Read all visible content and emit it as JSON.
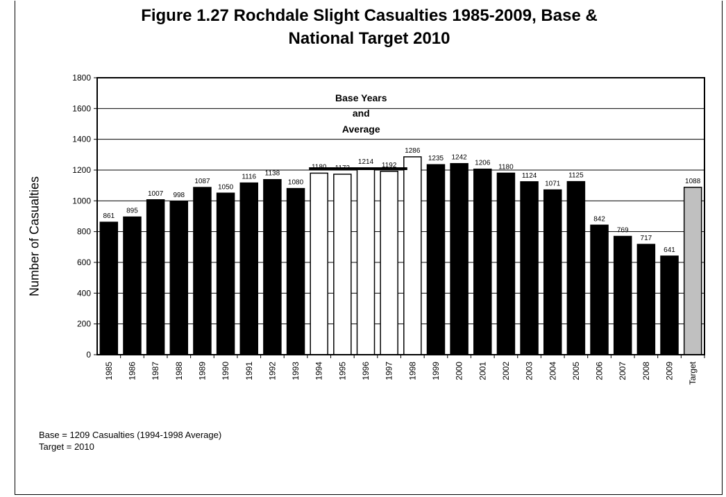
{
  "chart_data": {
    "type": "bar",
    "title_line1": "Figure 1.27 Rochdale Slight Casualties 1985-2009, Base &",
    "title_line2": "National Target 2010",
    "ylabel": "Number of Casualties",
    "xlabel": "",
    "ylim": [
      0,
      1800
    ],
    "yticks": [
      0,
      200,
      400,
      600,
      800,
      1000,
      1200,
      1400,
      1600,
      1800
    ],
    "grid": true,
    "categories": [
      "1985",
      "1986",
      "1987",
      "1988",
      "1989",
      "1990",
      "1991",
      "1992",
      "1993",
      "1994",
      "1995",
      "1996",
      "1997",
      "1998",
      "1999",
      "2000",
      "2001",
      "2002",
      "2003",
      "2004",
      "2005",
      "2006",
      "2007",
      "2008",
      "2009",
      "Target"
    ],
    "values": [
      861,
      895,
      1007,
      998,
      1087,
      1050,
      1116,
      1138,
      1080,
      1180,
      1173,
      1214,
      1192,
      1286,
      1235,
      1242,
      1206,
      1180,
      1124,
      1071,
      1125,
      842,
      769,
      717,
      641,
      1088
    ],
    "bar_kind": [
      "actual",
      "actual",
      "actual",
      "actual",
      "actual",
      "actual",
      "actual",
      "actual",
      "actual",
      "base",
      "base",
      "base",
      "base",
      "base",
      "actual",
      "actual",
      "actual",
      "actual",
      "actual",
      "actual",
      "actual",
      "actual",
      "actual",
      "actual",
      "actual",
      "target"
    ],
    "colors": {
      "actual": "#000000",
      "base": "#ffffff",
      "target": "#c0c0c0"
    },
    "base_average": 1209,
    "base_line_span": [
      "1994",
      "1998"
    ],
    "annotation_lines": [
      "Base Years",
      "and",
      "Average"
    ]
  },
  "notes": {
    "line1": "Base = 1209 Casualties (1994-1998 Average)",
    "line2": "Target = 2010"
  }
}
